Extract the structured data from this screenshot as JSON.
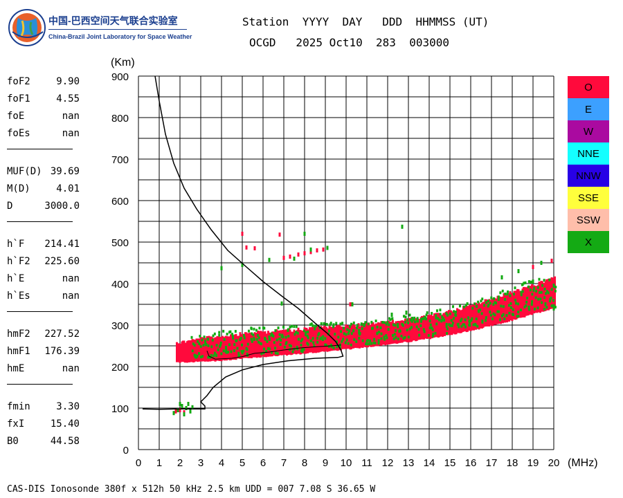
{
  "logo": {
    "cn": "中国-巴西空间天气联合实验室",
    "en": "China-Brazil Joint Laboratory for Space Weather"
  },
  "header": {
    "line1": "Station  YYYY  DAY   DDD  HHMMSS (UT)",
    "line2": "OCGD   2025 Oct10  283  003000"
  },
  "params": [
    {
      "group": 1,
      "key": "foF2",
      "value": "9.90"
    },
    {
      "group": 1,
      "key": "foF1",
      "value": "4.55"
    },
    {
      "group": 1,
      "key": "foE",
      "value": "nan"
    },
    {
      "group": 1,
      "key": "foEs",
      "value": "nan"
    },
    {
      "group": 2,
      "key": "MUF(D)",
      "value": "39.69"
    },
    {
      "group": 2,
      "key": "M(D)",
      "value": "4.01"
    },
    {
      "group": 2,
      "key": "D",
      "value": "3000.0"
    },
    {
      "group": 3,
      "key": "h`F",
      "value": "214.41"
    },
    {
      "group": 3,
      "key": "h`F2",
      "value": "225.60"
    },
    {
      "group": 3,
      "key": "h`E",
      "value": "nan"
    },
    {
      "group": 3,
      "key": "h`Es",
      "value": "nan"
    },
    {
      "group": 4,
      "key": "hmF2",
      "value": "227.52"
    },
    {
      "group": 4,
      "key": "hmF1",
      "value": "176.39"
    },
    {
      "group": 4,
      "key": "hmE",
      "value": "nan"
    },
    {
      "group": 5,
      "key": "fmin",
      "value": "3.30"
    },
    {
      "group": 5,
      "key": "fxI",
      "value": "15.40"
    },
    {
      "group": 5,
      "key": "B0",
      "value": "44.58"
    }
  ],
  "legend": [
    {
      "label": "O",
      "color": "#ff0a3c"
    },
    {
      "label": "E",
      "color": "#3ca0ff"
    },
    {
      "label": "W",
      "color": "#aa0aa0"
    },
    {
      "label": "NNE",
      "color": "#14ffff"
    },
    {
      "label": "NNW",
      "color": "#2800e6"
    },
    {
      "label": "SSE",
      "color": "#ffff3c"
    },
    {
      "label": "SSW",
      "color": "#ffbeaa"
    },
    {
      "label": "X",
      "color": "#14aa14"
    }
  ],
  "footer": "CAS-DIS Ionosonde 380f x 512h 50 kHz 2.5 km UDD = 007 7.08 S 36.65 W",
  "chart_data": {
    "type": "scatter",
    "xlabel": "(MHz)",
    "ylabel": "(Km)",
    "xlim": [
      0,
      20
    ],
    "ylim": [
      0,
      900
    ],
    "xticks": [
      0,
      1,
      2,
      3,
      4,
      5,
      6,
      7,
      8,
      9,
      10,
      11,
      12,
      13,
      14,
      15,
      16,
      17,
      18,
      19,
      20
    ],
    "yticks": [
      0,
      100,
      200,
      300,
      400,
      500,
      600,
      700,
      800,
      900
    ],
    "grid": true,
    "legend_position": "right",
    "series": [
      {
        "name": "O",
        "color": "#ff0a3c",
        "band": [
          {
            "x": 1.8,
            "ymin": 208,
            "ymax": 262
          },
          {
            "x": 3,
            "ymin": 210,
            "ymax": 272
          },
          {
            "x": 4,
            "ymin": 213,
            "ymax": 278
          },
          {
            "x": 5,
            "ymin": 218,
            "ymax": 284
          },
          {
            "x": 6,
            "ymin": 222,
            "ymax": 288
          },
          {
            "x": 7,
            "ymin": 226,
            "ymax": 292
          },
          {
            "x": 8,
            "ymin": 230,
            "ymax": 296
          },
          {
            "x": 9,
            "ymin": 235,
            "ymax": 300
          },
          {
            "x": 10,
            "ymin": 240,
            "ymax": 303
          },
          {
            "x": 11,
            "ymin": 246,
            "ymax": 307
          },
          {
            "x": 12,
            "ymin": 252,
            "ymax": 312
          },
          {
            "x": 13,
            "ymin": 258,
            "ymax": 318
          },
          {
            "x": 14,
            "ymin": 266,
            "ymax": 326
          },
          {
            "x": 15,
            "ymin": 275,
            "ymax": 338
          },
          {
            "x": 16,
            "ymin": 285,
            "ymax": 352
          },
          {
            "x": 17,
            "ymin": 297,
            "ymax": 368
          },
          {
            "x": 18,
            "ymin": 310,
            "ymax": 385
          },
          {
            "x": 19,
            "ymin": 325,
            "ymax": 400
          },
          {
            "x": 20,
            "ymin": 340,
            "ymax": 420
          }
        ],
        "points": [
          [
            1.8,
            92
          ],
          [
            2.0,
            95
          ],
          [
            2.2,
            90
          ],
          [
            7.0,
            462
          ],
          [
            7.3,
            465
          ],
          [
            7.7,
            470
          ],
          [
            8.0,
            473
          ],
          [
            8.3,
            476
          ],
          [
            8.6,
            480
          ],
          [
            8.9,
            482
          ],
          [
            5.0,
            520
          ],
          [
            6.8,
            518
          ],
          [
            5.2,
            487
          ],
          [
            5.6,
            485
          ],
          [
            10.2,
            350
          ],
          [
            19.0,
            440
          ],
          [
            19.9,
            455
          ]
        ]
      },
      {
        "name": "X",
        "color": "#14aa14",
        "band": [
          {
            "x": 2.5,
            "ymin": 225,
            "ymax": 280
          },
          {
            "x": 4,
            "ymin": 225,
            "ymax": 290
          },
          {
            "x": 6,
            "ymin": 232,
            "ymax": 300
          },
          {
            "x": 8,
            "ymin": 240,
            "ymax": 308
          },
          {
            "x": 10,
            "ymin": 250,
            "ymax": 312
          },
          {
            "x": 12,
            "ymin": 262,
            "ymax": 320
          },
          {
            "x": 14,
            "ymin": 275,
            "ymax": 335
          },
          {
            "x": 16,
            "ymin": 295,
            "ymax": 360
          },
          {
            "x": 18,
            "ymin": 320,
            "ymax": 400
          },
          {
            "x": 20,
            "ymin": 345,
            "ymax": 430
          }
        ],
        "points": [
          [
            1.9,
            95
          ],
          [
            2.1,
            105
          ],
          [
            2.3,
            100
          ],
          [
            2.4,
            110
          ],
          [
            2.5,
            92
          ],
          [
            2.2,
            85
          ],
          [
            2.6,
            102
          ],
          [
            1.7,
            88
          ],
          [
            2.0,
            110
          ],
          [
            4.0,
            437
          ],
          [
            5.0,
            445
          ],
          [
            6.3,
            457
          ],
          [
            6.9,
            352
          ],
          [
            7.5,
            460
          ],
          [
            8.3,
            482
          ],
          [
            9.1,
            486
          ],
          [
            8.0,
            520
          ],
          [
            12.7,
            537
          ],
          [
            10.3,
            350
          ],
          [
            12.2,
            325
          ],
          [
            12.9,
            330
          ],
          [
            17.5,
            415
          ],
          [
            18.3,
            430
          ],
          [
            19.4,
            450
          ],
          [
            19.0,
            405
          ],
          [
            20.0,
            395
          ],
          [
            19.6,
            350
          ],
          [
            18.8,
            342
          ],
          [
            20.0,
            340
          ]
        ]
      }
    ],
    "lines": [
      {
        "name": "profile",
        "points": [
          [
            0.8,
            900
          ],
          [
            1.0,
            840
          ],
          [
            1.3,
            760
          ],
          [
            1.7,
            690
          ],
          [
            2.2,
            630
          ],
          [
            2.8,
            580
          ],
          [
            3.5,
            530
          ],
          [
            4.3,
            480
          ],
          [
            5.2,
            440
          ],
          [
            6.0,
            405
          ],
          [
            6.9,
            370
          ],
          [
            7.7,
            340
          ],
          [
            8.5,
            305
          ],
          [
            9.1,
            280
          ],
          [
            9.5,
            260
          ],
          [
            9.75,
            240
          ],
          [
            9.85,
            225
          ],
          [
            9.6,
            222
          ],
          [
            8.5,
            220
          ],
          [
            7.2,
            214
          ],
          [
            6.0,
            205
          ],
          [
            5.0,
            192
          ],
          [
            4.2,
            175
          ],
          [
            3.6,
            150
          ],
          [
            3.3,
            130
          ],
          [
            3.0,
            115
          ],
          [
            3.2,
            105
          ],
          [
            3.2,
            98
          ],
          [
            2.0,
            98
          ],
          [
            1.0,
            97
          ],
          [
            0.2,
            98
          ]
        ]
      },
      {
        "name": "trace",
        "points": [
          [
            3.3,
            238
          ],
          [
            3.4,
            225
          ],
          [
            3.7,
            218
          ],
          [
            4.5,
            220
          ],
          [
            5.0,
            224
          ],
          [
            5.6,
            232
          ],
          [
            6.3,
            235
          ],
          [
            7.0,
            240
          ],
          [
            7.8,
            245
          ],
          [
            8.6,
            248
          ],
          [
            9.3,
            250
          ],
          [
            9.75,
            252
          ]
        ]
      }
    ]
  }
}
